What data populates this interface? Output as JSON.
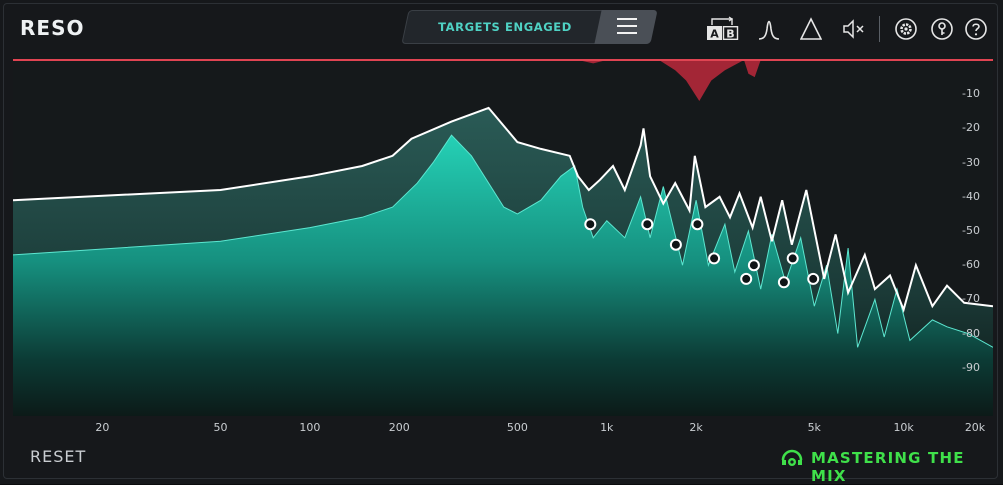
{
  "app": {
    "title": "RESO"
  },
  "header": {
    "targets_label": "TARGETS ENGAGED",
    "ab_labels": [
      "A",
      "B"
    ]
  },
  "footer": {
    "reset_label": "RESET",
    "brand_label": "MASTERING THE MIX"
  },
  "colors": {
    "accent": "#4fd2c4",
    "brand_green": "#3fe04a",
    "spectrum_fill": "#1fbfa6",
    "reduction": "#c22a3a"
  },
  "chart_data": {
    "type": "area",
    "x_scale": "log",
    "xlim": [
      10,
      20000
    ],
    "ylim": [
      -100,
      0
    ],
    "x_ticks": [
      "20",
      "50",
      "100",
      "200",
      "500",
      "1k",
      "2k",
      "5k",
      "10k",
      "20k"
    ],
    "x_tick_values": [
      20,
      50,
      100,
      200,
      500,
      1000,
      2000,
      5000,
      10000,
      20000
    ],
    "y_ticks": [
      "-10",
      "-20",
      "-30",
      "-40",
      "-50",
      "-60",
      "-70",
      "-80",
      "-90"
    ],
    "y_tick_values": [
      -10,
      -20,
      -30,
      -40,
      -50,
      -60,
      -70,
      -80,
      -90
    ],
    "series": [
      {
        "x": [
          10,
          50,
          100,
          150,
          190,
          220,
          300,
          400,
          500,
          600,
          750,
          800,
          870,
          950,
          1050,
          1150,
          1300,
          1330,
          1400,
          1550,
          1700,
          1900,
          1980,
          2150,
          2400,
          2600,
          2800,
          3100,
          3300,
          3600,
          3900,
          4200,
          4700,
          5400,
          5900,
          6500,
          7400,
          8000,
          9000,
          10000,
          11000,
          12500,
          14000,
          16000,
          20000
        ],
        "y": [
          -41,
          -38,
          -34,
          -31,
          -28,
          -23,
          -18,
          -14,
          -24,
          -26,
          -28,
          -34,
          -38,
          -35,
          -31,
          -38,
          -25,
          -20,
          -34,
          -42,
          -36,
          -44,
          -28,
          -43,
          -40,
          -46,
          -39,
          -49,
          -40,
          -53,
          -41,
          -54,
          -38,
          -64,
          -51,
          -68,
          -57,
          -67,
          -63,
          -73,
          -60,
          -72,
          -66,
          -71,
          -72
        ]
      },
      {
        "x": [
          10,
          50,
          100,
          150,
          190,
          230,
          260,
          300,
          350,
          450,
          500,
          600,
          700,
          780,
          830,
          900,
          1000,
          1150,
          1300,
          1400,
          1550,
          1800,
          2000,
          2200,
          2500,
          2700,
          3000,
          3300,
          3600,
          4000,
          4500,
          5000,
          5500,
          6000,
          6500,
          7000,
          8000,
          8600,
          9500,
          10500,
          12500,
          14000,
          16500,
          20000
        ],
        "y": [
          -57,
          -53,
          -49,
          -46,
          -43,
          -36,
          -30,
          -22,
          -28,
          -43,
          -45,
          -41,
          -34,
          -31,
          -43,
          -52,
          -47,
          -52,
          -40,
          -52,
          -37,
          -60,
          -41,
          -60,
          -48,
          -62,
          -50,
          -67,
          -51,
          -65,
          -52,
          -72,
          -60,
          -80,
          -55,
          -84,
          -70,
          -81,
          -67,
          -82,
          -76,
          -78,
          -80,
          -84
        ]
      }
    ],
    "nodes": [
      {
        "x": 880,
        "y": -48
      },
      {
        "x": 1370,
        "y": -48
      },
      {
        "x": 1710,
        "y": -54
      },
      {
        "x": 2020,
        "y": -48
      },
      {
        "x": 2300,
        "y": -58
      },
      {
        "x": 2950,
        "y": -64
      },
      {
        "x": 3130,
        "y": -60
      },
      {
        "x": 3950,
        "y": -65
      },
      {
        "x": 4230,
        "y": -58
      },
      {
        "x": 4960,
        "y": -64
      }
    ],
    "reduction": {
      "x": [
        10,
        800,
        900,
        1000,
        1500,
        1700,
        1850,
        2050,
        2250,
        2500,
        2900,
        3000,
        3150,
        3300,
        20000
      ],
      "y": [
        0,
        0,
        -1,
        0,
        0,
        -3,
        -6,
        -12,
        -6,
        -3,
        0,
        -4,
        -5,
        0,
        0
      ]
    }
  }
}
